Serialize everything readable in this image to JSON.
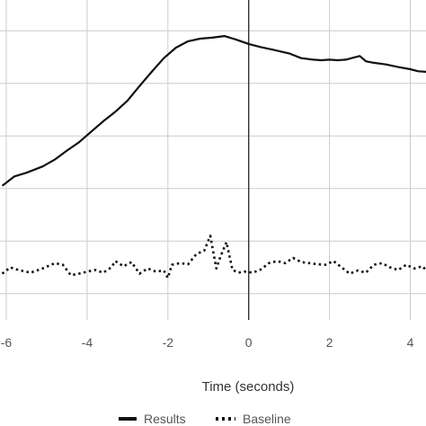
{
  "chart_data": {
    "type": "line",
    "title": "",
    "xlabel": "Time (seconds)",
    "ylabel": "",
    "xlim": [
      -6.1,
      4.4
    ],
    "ylim": [
      -2.5,
      3.5
    ],
    "x_ticks": [
      -6,
      -4,
      -2,
      0,
      2,
      4
    ],
    "x_tick_labels": [
      "-6",
      "-4",
      "-2",
      "0",
      "2",
      "4"
    ],
    "grid": true,
    "vertical_marker_x": 0,
    "legend_position": "bottom",
    "colors": {
      "results": "#111111",
      "baseline": "#111111",
      "grid": "#cccccc",
      "marker": "#333333"
    },
    "series": [
      {
        "name": "Results",
        "style": "solid",
        "x": [
          -6.1,
          -5.8,
          -5.5,
          -5.1,
          -4.8,
          -4.5,
          -4.2,
          -3.9,
          -3.6,
          -3.3,
          -3.0,
          -2.7,
          -2.4,
          -2.1,
          -1.8,
          -1.5,
          -1.2,
          -0.9,
          -0.6,
          -0.3,
          0.0,
          0.3,
          0.6,
          1.0,
          1.3,
          1.6,
          1.8,
          2.0,
          2.2,
          2.4,
          2.6,
          2.75,
          2.9,
          3.1,
          3.4,
          3.7,
          4.0,
          4.2,
          4.4
        ],
        "y": [
          0.05,
          0.23,
          0.3,
          0.42,
          0.55,
          0.72,
          0.88,
          1.08,
          1.28,
          1.46,
          1.67,
          1.95,
          2.22,
          2.48,
          2.68,
          2.8,
          2.85,
          2.87,
          2.9,
          2.83,
          2.75,
          2.69,
          2.64,
          2.57,
          2.48,
          2.45,
          2.44,
          2.45,
          2.44,
          2.45,
          2.49,
          2.52,
          2.42,
          2.39,
          2.36,
          2.31,
          2.27,
          2.23,
          2.22
        ]
      },
      {
        "name": "Baseline",
        "style": "dotted",
        "x": [
          -6.1,
          -5.9,
          -5.7,
          -5.4,
          -5.1,
          -4.8,
          -4.6,
          -4.4,
          -4.2,
          -4.0,
          -3.8,
          -3.6,
          -3.4,
          -3.3,
          -3.1,
          -2.9,
          -2.7,
          -2.5,
          -2.3,
          -2.1,
          -2.0,
          -1.9,
          -1.7,
          -1.5,
          -1.3,
          -1.1,
          -0.95,
          -0.8,
          -0.7,
          -0.55,
          -0.4,
          -0.25,
          -0.1,
          0.1,
          0.3,
          0.5,
          0.7,
          0.9,
          1.1,
          1.3,
          1.5,
          1.7,
          1.9,
          2.1,
          2.3,
          2.5,
          2.7,
          2.9,
          3.1,
          3.3,
          3.5,
          3.7,
          3.9,
          4.1,
          4.3,
          4.4
        ],
        "y": [
          -1.62,
          -1.5,
          -1.55,
          -1.6,
          -1.52,
          -1.42,
          -1.45,
          -1.65,
          -1.62,
          -1.58,
          -1.55,
          -1.6,
          -1.5,
          -1.38,
          -1.48,
          -1.4,
          -1.62,
          -1.52,
          -1.58,
          -1.56,
          -1.7,
          -1.45,
          -1.42,
          -1.44,
          -1.25,
          -1.18,
          -0.9,
          -1.52,
          -1.3,
          -1.02,
          -1.55,
          -1.6,
          -1.58,
          -1.6,
          -1.54,
          -1.42,
          -1.38,
          -1.42,
          -1.32,
          -1.4,
          -1.42,
          -1.44,
          -1.45,
          -1.38,
          -1.5,
          -1.62,
          -1.56,
          -1.6,
          -1.45,
          -1.42,
          -1.5,
          -1.55,
          -1.45,
          -1.52,
          -1.48,
          -1.56
        ]
      }
    ]
  }
}
